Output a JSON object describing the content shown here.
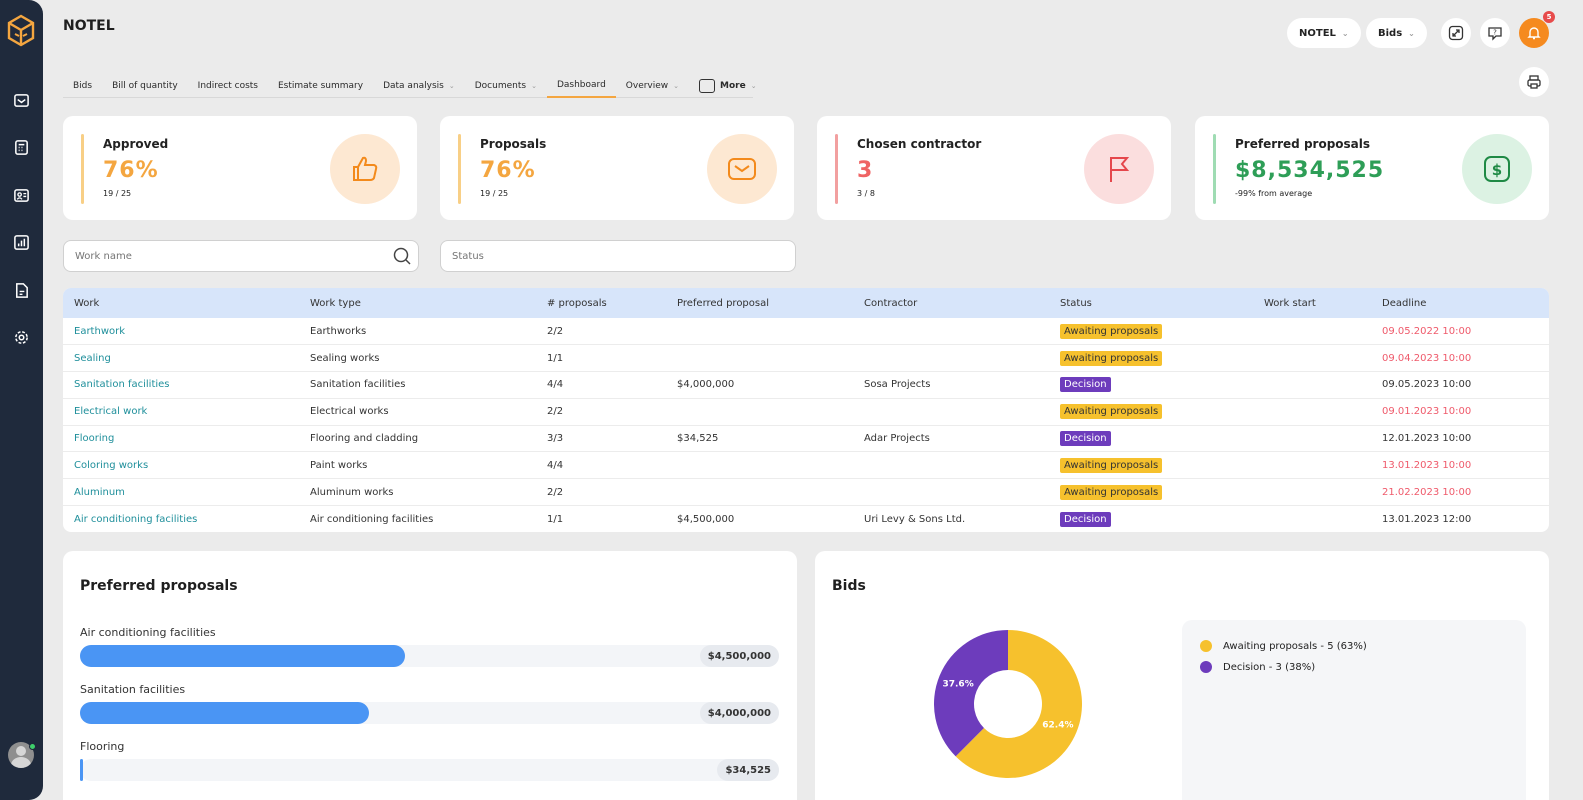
{
  "app": {
    "title": "NOTEL"
  },
  "header": {
    "project_select": "NOTEL",
    "view_select": "Bids",
    "notification_count": "5"
  },
  "tabs": [
    {
      "label": "Bids"
    },
    {
      "label": "Bill of quantity"
    },
    {
      "label": "Indirect costs"
    },
    {
      "label": "Estimate summary"
    },
    {
      "label": "Data analysis"
    },
    {
      "label": "Documents"
    },
    {
      "label": "Dashboard",
      "active": true
    },
    {
      "label": "Overview"
    },
    {
      "label": "More"
    }
  ],
  "cards": [
    {
      "label": "Approved",
      "value": "76%",
      "sub": "19 / 25",
      "color": "#f4a640",
      "icon": "thumbs-up-icon"
    },
    {
      "label": "Proposals",
      "value": "76%",
      "sub": "19 / 25",
      "color": "#f4a640",
      "icon": "envelope-icon"
    },
    {
      "label": "Chosen contractor",
      "value": "3",
      "sub": "3 / 8",
      "color": "#ef6464",
      "icon": "flag-icon"
    },
    {
      "label": "Preferred proposals",
      "value": "$8,534,525",
      "sub": "-99%  from average",
      "color": "#2e9e57",
      "icon": "dollar-icon"
    }
  ],
  "filters": {
    "work_name_placeholder": "Work name",
    "status_placeholder": "Status"
  },
  "table": {
    "columns": [
      "Work",
      "Work type",
      "# proposals",
      "Preferred proposal",
      "Contractor",
      "Status",
      "Work start",
      "Deadline"
    ],
    "rows": [
      {
        "work": "Earthwork",
        "type": "Earthworks",
        "proposals": "2/2",
        "preferred": "",
        "contractor": "",
        "status": "Awaiting proposals",
        "start": "",
        "deadline": "09.05.2022 10:00",
        "late": true
      },
      {
        "work": "Sealing",
        "type": "Sealing works",
        "proposals": "1/1",
        "preferred": "",
        "contractor": "",
        "status": "Awaiting proposals",
        "start": "",
        "deadline": "09.04.2023 10:00",
        "late": true
      },
      {
        "work": "Sanitation facilities",
        "type": "Sanitation facilities",
        "proposals": "4/4",
        "preferred": "$4,000,000",
        "contractor": "Sosa Projects",
        "status": "Decision",
        "start": "",
        "deadline": "09.05.2023 10:00",
        "late": false
      },
      {
        "work": "Electrical work",
        "type": "Electrical works",
        "proposals": "2/2",
        "preferred": "",
        "contractor": "",
        "status": "Awaiting proposals",
        "start": "",
        "deadline": "09.01.2023 10:00",
        "late": true
      },
      {
        "work": "Flooring",
        "type": "Flooring and cladding",
        "proposals": "3/3",
        "preferred": "$34,525",
        "contractor": "Adar Projects",
        "status": "Decision",
        "start": "",
        "deadline": "12.01.2023 10:00",
        "late": false
      },
      {
        "work": "Coloring works",
        "type": "Paint works",
        "proposals": "4/4",
        "preferred": "",
        "contractor": "",
        "status": "Awaiting proposals",
        "start": "",
        "deadline": "13.01.2023 10:00",
        "late": true
      },
      {
        "work": "Aluminum",
        "type": "Aluminum works",
        "proposals": "2/2",
        "preferred": "",
        "contractor": "",
        "status": "Awaiting proposals",
        "start": "",
        "deadline": "21.02.2023 10:00",
        "late": true
      },
      {
        "work": "Air conditioning facilities",
        "type": "Air conditioning facilities",
        "proposals": "1/1",
        "preferred": "$4,500,000",
        "contractor": "Uri Levy & Sons Ltd.",
        "status": "Decision",
        "start": "",
        "deadline": "13.01.2023 12:00",
        "late": false
      }
    ]
  },
  "preferred_panel": {
    "title": "Preferred proposals",
    "items": [
      {
        "label": "Air conditioning facilities",
        "amount": "$4,500,000",
        "fraction": 0.465
      },
      {
        "label": "Sanitation facilities",
        "amount": "$4,000,000",
        "fraction": 0.413
      },
      {
        "label": "Flooring",
        "amount": "$34,525",
        "fraction": 0.004
      }
    ]
  },
  "bids_panel": {
    "title": "Bids",
    "legend": [
      {
        "label": "Awaiting proposals - 5 (63%)",
        "color": "#f6c12d"
      },
      {
        "label": "Decision - 3 (38%)",
        "color": "#6d3cbc"
      }
    ]
  },
  "chart_data": {
    "type": "pie",
    "title": "Bids",
    "categories": [
      "Awaiting proposals",
      "Decision"
    ],
    "values": [
      5,
      3
    ],
    "percent_labels": [
      "62.4%",
      "37.6%"
    ],
    "colors": [
      "#f6c12d",
      "#6d3cbc"
    ]
  }
}
